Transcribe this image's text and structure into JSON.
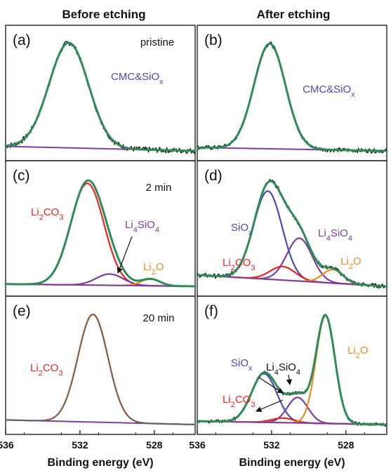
{
  "figure": {
    "column_titles": [
      "Before etching",
      "After etching"
    ],
    "x_axis": {
      "label": "Binding energy (eV)",
      "ticks": [
        "536",
        "532",
        "528"
      ],
      "range": [
        536,
        525.8
      ],
      "reversed": true
    }
  },
  "colors": {
    "raw": "#111111",
    "envelope": "#2e8b57",
    "background": "#7b3fa0",
    "SiOx": "#4a4ab4",
    "Li2CO3": "#e8251f",
    "Li4SiO4": "#7b3fa0",
    "Li2O": "#f08a1c"
  },
  "chart_data": [
    {
      "panel": "(a)",
      "type": "line",
      "condition": "pristine",
      "column": "Before etching",
      "xlabel": "Binding energy (eV)",
      "xlim": [
        536,
        525.8
      ],
      "annotations": [
        {
          "text": "CMC&SiOx",
          "html": "CMC&amp;SiO<tspan baseline-shift=\"sub\" font-size=\"11\">x</tspan>",
          "color": "#4a4ab4"
        }
      ],
      "series": [
        {
          "name": "CMC&SiOx",
          "kind": "gaussian",
          "center": 532.6,
          "fwhm": 2.5,
          "height": 0.93
        },
        {
          "kind": "background",
          "from": 0.04,
          "to": 0.0
        }
      ],
      "raw_noise": 0.025
    },
    {
      "panel": "(b)",
      "type": "line",
      "condition": "",
      "column": "After etching",
      "xlabel": "Binding energy (eV)",
      "xlim": [
        536,
        525.8
      ],
      "annotations": [
        {
          "text": "CMC&SiOx",
          "html": "CMC&amp;SiO<tspan baseline-shift=\"sub\" font-size=\"11\">x</tspan>",
          "color": "#4a4ab4"
        }
      ],
      "series": [
        {
          "name": "CMC&SiOx",
          "kind": "gaussian",
          "center": 532.1,
          "fwhm": 2.0,
          "height": 0.93
        },
        {
          "kind": "background",
          "from": 0.03,
          "to": 0.0
        }
      ],
      "raw_noise": 0.02
    },
    {
      "panel": "(c)",
      "type": "line",
      "condition": "2 min",
      "column": "Before etching",
      "xlabel": "Binding energy (eV)",
      "xlim": [
        536,
        525.8
      ],
      "annotations": [
        {
          "text": "Li2CO3",
          "html": "Li<tspan baseline-shift=\"sub\" font-size=\"11\">2</tspan>CO<tspan baseline-shift=\"sub\" font-size=\"11\">3</tspan>",
          "color": "#e8251f"
        },
        {
          "text": "Li4SiO4",
          "html": "Li<tspan baseline-shift=\"sub\" font-size=\"11\">4</tspan>SiO<tspan baseline-shift=\"sub\" font-size=\"11\">4</tspan>",
          "color": "#7b3fa0"
        },
        {
          "text": "Li2O",
          "html": "Li<tspan baseline-shift=\"sub\" font-size=\"11\">2</tspan>O",
          "color": "#f08a1c"
        }
      ],
      "series": [
        {
          "name": "Li2CO3",
          "kind": "gaussian",
          "center": 531.6,
          "fwhm": 2.1,
          "height": 0.9
        },
        {
          "name": "Li4SiO4",
          "kind": "gaussian",
          "center": 530.4,
          "fwhm": 1.7,
          "height": 0.1
        },
        {
          "name": "Li2O",
          "kind": "gaussian",
          "center": 528.2,
          "fwhm": 1.2,
          "height": 0.06
        },
        {
          "kind": "background",
          "from": 0.02,
          "to": 0.0
        }
      ],
      "raw_noise": 0.0
    },
    {
      "panel": "(d)",
      "type": "line",
      "condition": "",
      "column": "After etching",
      "xlabel": "Binding energy (eV)",
      "xlim": [
        536,
        525.8
      ],
      "annotations": [
        {
          "text": "SiOx",
          "html": "SiO<tspan baseline-shift=\"sub\" font-size=\"11\">x</tspan>",
          "color": "#4a4ab4"
        },
        {
          "text": "Li4SiO4",
          "html": "Li<tspan baseline-shift=\"sub\" font-size=\"11\">4</tspan>SiO<tspan baseline-shift=\"sub\" font-size=\"11\">4</tspan>",
          "color": "#7b3fa0"
        },
        {
          "text": "Li2CO3",
          "html": "Li<tspan baseline-shift=\"sub\" font-size=\"11\">2</tspan>CO<tspan baseline-shift=\"sub\" font-size=\"11\">3</tspan>",
          "color": "#e8251f"
        },
        {
          "text": "Li2O",
          "html": "Li<tspan baseline-shift=\"sub\" font-size=\"11\">2</tspan>O",
          "color": "#f08a1c"
        }
      ],
      "series": [
        {
          "name": "SiOx",
          "kind": "gaussian",
          "center": 532.2,
          "fwhm": 1.8,
          "height": 0.78
        },
        {
          "name": "Li4SiO4",
          "kind": "gaussian",
          "center": 530.5,
          "fwhm": 1.6,
          "height": 0.38
        },
        {
          "name": "Li2CO3",
          "kind": "gaussian",
          "center": 531.4,
          "fwhm": 1.6,
          "height": 0.12
        },
        {
          "name": "Li2O",
          "kind": "gaussian",
          "center": 528.7,
          "fwhm": 1.3,
          "height": 0.12
        },
        {
          "kind": "background",
          "from": 0.1,
          "to": 0.0
        }
      ],
      "raw_noise": 0.02
    },
    {
      "panel": "(e)",
      "type": "line",
      "condition": "20 min",
      "column": "Before etching",
      "xlabel": "Binding energy (eV)",
      "xlim": [
        536,
        525.8
      ],
      "annotations": [
        {
          "text": "Li2CO3",
          "html": "Li<tspan baseline-shift=\"sub\" font-size=\"11\">2</tspan>CO<tspan baseline-shift=\"sub\" font-size=\"11\">3</tspan>",
          "color": "#e8251f"
        }
      ],
      "series": [
        {
          "name": "Li2CO3",
          "kind": "gaussian",
          "center": 531.3,
          "fwhm": 1.9,
          "height": 0.93
        },
        {
          "kind": "background",
          "from": 0.04,
          "to": 0.0
        }
      ],
      "raw_noise": 0.0
    },
    {
      "panel": "(f)",
      "type": "line",
      "condition": "",
      "column": "After etching",
      "xlabel": "Binding energy (eV)",
      "xlim": [
        536,
        525.8
      ],
      "annotations": [
        {
          "text": "SiOx",
          "html": "SiO<tspan baseline-shift=\"sub\" font-size=\"11\">x</tspan>",
          "color": "#4a4ab4"
        },
        {
          "text": "Li4SiO4",
          "html": "Li<tspan baseline-shift=\"sub\" font-size=\"11\">4</tspan>SiO<tspan baseline-shift=\"sub\" font-size=\"11\">4</tspan>",
          "color": "#111111"
        },
        {
          "text": "Li2O",
          "html": "Li<tspan baseline-shift=\"sub\" font-size=\"11\">2</tspan>O",
          "color": "#f08a1c"
        },
        {
          "text": "Li2CO3",
          "html": "Li<tspan baseline-shift=\"sub\" font-size=\"11\">2</tspan>CO<tspan baseline-shift=\"sub\" font-size=\"11\">3</tspan>",
          "color": "#e8251f"
        }
      ],
      "series": [
        {
          "name": "SiOx",
          "kind": "gaussian",
          "center": 532.4,
          "fwhm": 1.6,
          "height": 0.42
        },
        {
          "name": "Li4SiO4",
          "kind": "gaussian",
          "center": 530.6,
          "fwhm": 1.3,
          "height": 0.22
        },
        {
          "name": "Li2CO3",
          "kind": "gaussian",
          "center": 531.4,
          "fwhm": 1.4,
          "height": 0.04
        },
        {
          "name": "Li2O",
          "kind": "gaussian",
          "center": 529.1,
          "fwhm": 1.2,
          "height": 0.93
        },
        {
          "kind": "background",
          "from": 0.03,
          "to": 0.0
        }
      ],
      "raw_noise": 0.015
    }
  ]
}
